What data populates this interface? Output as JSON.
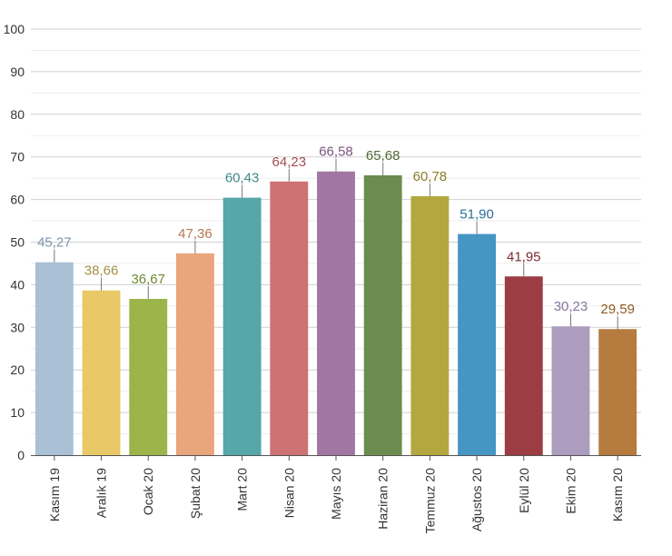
{
  "chart_data": {
    "type": "bar",
    "title": "",
    "xlabel": "",
    "ylabel": "",
    "ylim": [
      0,
      100
    ],
    "yticks": [
      "0",
      "10",
      "20",
      "30",
      "40",
      "50",
      "60",
      "70",
      "80",
      "90",
      "100"
    ],
    "grid": true,
    "legend": "none",
    "categories": [
      "Kasım 19",
      "Aralık 19",
      "Ocak 20",
      "Şubat 20",
      "Mart 20",
      "Nisan 20",
      "Mayıs 20",
      "Haziran 20",
      "Temmuz 20",
      "Ağustos 20",
      "Eylül 20",
      "Ekim 20",
      "Kasım 20"
    ],
    "values": [
      45.27,
      38.66,
      36.67,
      47.36,
      60.43,
      64.23,
      66.58,
      65.68,
      60.78,
      51.9,
      41.95,
      30.23,
      29.59
    ],
    "value_labels": [
      "45,27",
      "38,66",
      "36,67",
      "47,36",
      "60,43",
      "64,23",
      "66,58",
      "65,68",
      "60,78",
      "51,90",
      "41,95",
      "30,23",
      "29,59"
    ],
    "bar_colors": [
      "#a9c0d5",
      "#e9c867",
      "#9cb54b",
      "#e9a57c",
      "#55a7a8",
      "#cd7172",
      "#a276a2",
      "#6c8c4f",
      "#b2a83f",
      "#4596c3",
      "#9b3d42",
      "#ac9cbd",
      "#b57b3f"
    ],
    "label_colors": [
      "#7f95aa",
      "#a89048",
      "#6f8a30",
      "#b37852",
      "#3f8a8c",
      "#a24d50",
      "#7c5380",
      "#4d6a36",
      "#8a7e25",
      "#2a6f9a",
      "#7d2a30",
      "#8475a0",
      "#8c5a25"
    ]
  }
}
